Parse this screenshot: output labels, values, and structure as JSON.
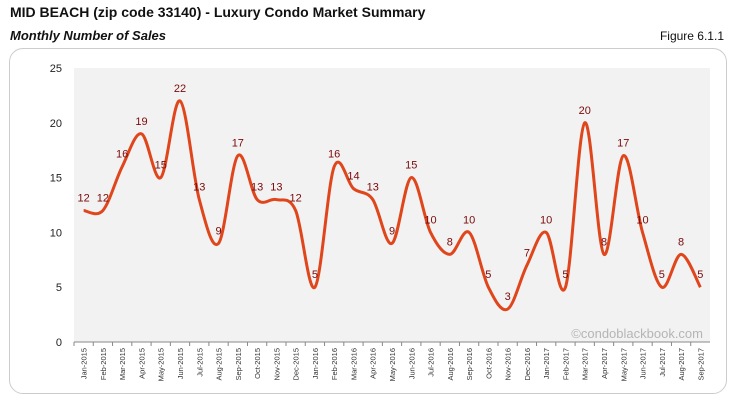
{
  "header": {
    "title": "MID BEACH (zip code 33140) - Luxury Condo Market Summary",
    "subtitle": "Monthly Number of Sales",
    "figure": "Figure 6.1.1"
  },
  "watermark": "©condoblackbook.com",
  "chart_data": {
    "type": "line",
    "categories": [
      "Jan-2015",
      "Feb-2015",
      "Mar-2015",
      "Apr-2015",
      "May-2015",
      "Jun-2015",
      "Jul-2015",
      "Aug-2015",
      "Sep-2015",
      "Oct-2015",
      "Nov-2015",
      "Dec-2015",
      "Jan-2016",
      "Feb-2016",
      "Mar-2016",
      "Apr-2016",
      "May-2016",
      "Jun-2016",
      "Jul-2016",
      "Aug-2016",
      "Sep-2016",
      "Oct-2016",
      "Nov-2016",
      "Dec-2016",
      "Jan-2017",
      "Feb-2017",
      "Mar-2017",
      "Apr-2017",
      "May-2017",
      "Jun-2017",
      "Jul-2017",
      "Aug-2017",
      "Sep-2017"
    ],
    "values": [
      12,
      12,
      16,
      19,
      15,
      22,
      13,
      9,
      17,
      13,
      13,
      12,
      5,
      16,
      14,
      13,
      9,
      15,
      10,
      8,
      10,
      5,
      3,
      7,
      10,
      5,
      20,
      8,
      17,
      10,
      5,
      8,
      5
    ],
    "ylim": [
      0,
      25
    ],
    "yticks": [
      "0",
      "5",
      "10",
      "15",
      "20",
      "25"
    ],
    "grid": false,
    "smooth": true,
    "colors": {
      "line": "#e0461c",
      "labels": "#7a0a0a",
      "plot_bg": "#f2f2f2"
    }
  }
}
